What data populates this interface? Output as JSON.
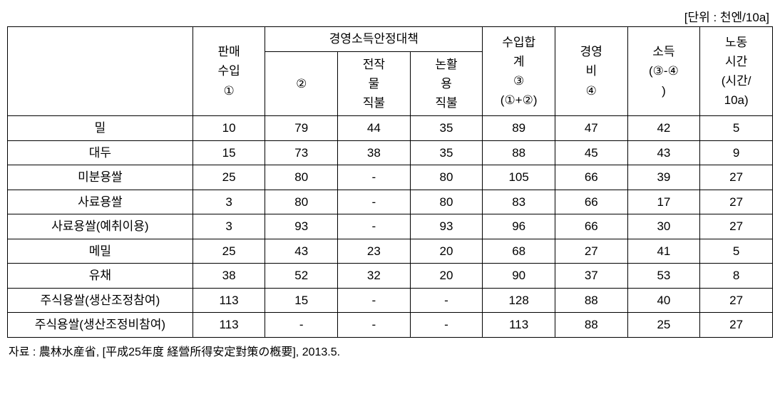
{
  "unit_label": "[단위 : 천엔/10a]",
  "headers": {
    "col1": "판매\n수입\n①",
    "group": "경영소득안정대책",
    "col2a": "②",
    "col2b": "전작\n물\n직불",
    "col2c": "논활\n용\n직불",
    "col3": "수입합\n계\n③\n(①+②)",
    "col4": "경영\n비\n④",
    "col5": "소득\n(③-④\n)",
    "col6": "노동\n시간\n(시간/\n10a)"
  },
  "rows": [
    {
      "label": "밀",
      "c1": "10",
      "c2a": "79",
      "c2b": "44",
      "c2c": "35",
      "c3": "89",
      "c4": "47",
      "c5": "42",
      "c6": "5"
    },
    {
      "label": "대두",
      "c1": "15",
      "c2a": "73",
      "c2b": "38",
      "c2c": "35",
      "c3": "88",
      "c4": "45",
      "c5": "43",
      "c6": "9"
    },
    {
      "label": "미분용쌀",
      "c1": "25",
      "c2a": "80",
      "c2b": "-",
      "c2c": "80",
      "c3": "105",
      "c4": "66",
      "c5": "39",
      "c6": "27"
    },
    {
      "label": "사료용쌀",
      "c1": "3",
      "c2a": "80",
      "c2b": "-",
      "c2c": "80",
      "c3": "83",
      "c4": "66",
      "c5": "17",
      "c6": "27"
    },
    {
      "label": "사료용쌀(예취이용)",
      "c1": "3",
      "c2a": "93",
      "c2b": "-",
      "c2c": "93",
      "c3": "96",
      "c4": "66",
      "c5": "30",
      "c6": "27"
    },
    {
      "label": "메밀",
      "c1": "25",
      "c2a": "43",
      "c2b": "23",
      "c2c": "20",
      "c3": "68",
      "c4": "27",
      "c5": "41",
      "c6": "5"
    },
    {
      "label": "유채",
      "c1": "38",
      "c2a": "52",
      "c2b": "32",
      "c2c": "20",
      "c3": "90",
      "c4": "37",
      "c5": "53",
      "c6": "8"
    },
    {
      "label": "주식용쌀(생산조정참여)",
      "c1": "113",
      "c2a": "15",
      "c2b": "-",
      "c2c": "-",
      "c3": "128",
      "c4": "88",
      "c5": "40",
      "c6": "27"
    },
    {
      "label": "주식용쌀(생산조정비참여)",
      "c1": "113",
      "c2a": "-",
      "c2b": "-",
      "c2c": "-",
      "c3": "113",
      "c4": "88",
      "c5": "25",
      "c6": "27"
    }
  ],
  "source": "자료 : 農林水産省, [平成25年度 経營所得安定對策の槪要], 2013.5."
}
